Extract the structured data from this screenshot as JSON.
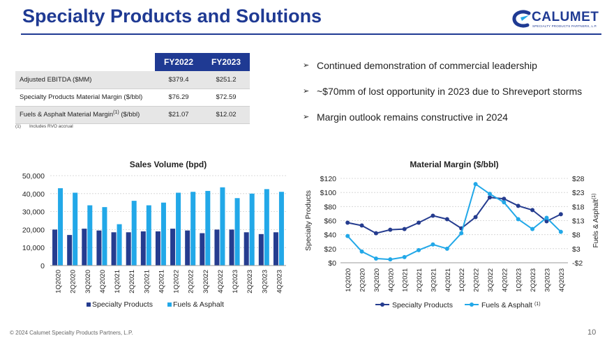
{
  "slide": {
    "title": "Specialty Products and Solutions",
    "footer": "© 2024 Calumet Specialty Products Partners, L.P.",
    "page_number": "10"
  },
  "logo": {
    "name": "CALUMET",
    "tagline": "SPECIALTY PRODUCTS PARTNERS, L.P."
  },
  "colors": {
    "brand_navy": "#1f3a93",
    "series_dark": "#253c8f",
    "series_light": "#22a8e8"
  },
  "kpi_table": {
    "headers": [
      "FY2022",
      "FY2023"
    ],
    "rows": [
      {
        "label": "Adjusted EBITDA ($MM)",
        "sup": "",
        "suffix": "",
        "fy2022": "$379.4",
        "fy2023": "$251.2"
      },
      {
        "label": "Specialty Products Material Margin ($/bbl)",
        "sup": "",
        "suffix": "",
        "fy2022": "$76.29",
        "fy2023": "$72.59"
      },
      {
        "label": "Fuels & Asphalt Material Margin",
        "sup": "(1)",
        "suffix": " ($/bbl)",
        "fy2022": "$21.07",
        "fy2023": "$12.02"
      }
    ],
    "footnote_ref": "(1)",
    "footnote_text": "Includes RVO accrual"
  },
  "bullets": [
    "Continued demonstration of commercial leadership",
    "~$70mm of lost opportunity in 2023 due to Shreveport storms",
    "Margin outlook remains constructive in 2024"
  ],
  "chart_data": [
    {
      "type": "bar",
      "title": "Sales Volume (bpd)",
      "categories": [
        "1Q2020",
        "2Q2020",
        "3Q2020",
        "4Q2020",
        "1Q2021",
        "2Q2021",
        "3Q2021",
        "4Q2021",
        "1Q2022",
        "2Q2022",
        "3Q2022",
        "4Q2022",
        "1Q2023",
        "2Q2023",
        "3Q2023",
        "4Q2023"
      ],
      "series": [
        {
          "name": "Specialty Products",
          "values": [
            20000,
            17000,
            20500,
            19500,
            18500,
            18500,
            19000,
            19000,
            20500,
            19500,
            18000,
            20000,
            20000,
            18500,
            17500,
            18500
          ]
        },
        {
          "name": "Fuels & Asphalt",
          "values": [
            43000,
            40500,
            33500,
            32500,
            23000,
            36000,
            33500,
            35000,
            40500,
            41000,
            41500,
            43500,
            37500,
            40000,
            42500,
            41000
          ]
        }
      ],
      "ylim": [
        0,
        50000
      ],
      "yticks": [
        "0",
        "10,000",
        "20,000",
        "30,000",
        "40,000",
        "50,000"
      ],
      "grid": true,
      "legend": "bottom"
    },
    {
      "type": "line",
      "title": "Material Margin ($/bbl)",
      "categories": [
        "1Q2020",
        "2Q2020",
        "3Q2020",
        "4Q2020",
        "1Q2021",
        "2Q2021",
        "3Q2021",
        "4Q2021",
        "1Q2022",
        "2Q2022",
        "3Q2022",
        "4Q2022",
        "1Q2023",
        "2Q2023",
        "3Q2023",
        "4Q2023"
      ],
      "ylabel_left": "Specialty Products",
      "ylabel_right": "Fuels & Asphalt",
      "ylabel_right_sup": "(1)",
      "ylim_left": [
        0,
        120
      ],
      "yticks_left": [
        "$0",
        "$20",
        "$40",
        "$60",
        "$80",
        "$100",
        "$120"
      ],
      "ylim_right": [
        -2,
        28
      ],
      "yticks_right": [
        "-$2",
        "$3",
        "$8",
        "$13",
        "$18",
        "$23",
        "$28"
      ],
      "series": [
        {
          "name": "Specialty Products",
          "axis": "left",
          "sup": "",
          "values": [
            57,
            53,
            42,
            47,
            48,
            57,
            67,
            62,
            49,
            65,
            93,
            91,
            81,
            75,
            59,
            69
          ]
        },
        {
          "name": "Fuels & Asphalt",
          "axis": "right",
          "sup": "(1)",
          "values": [
            7.5,
            2,
            -0.5,
            -0.8,
            0,
            2.5,
            4.5,
            3,
            8.5,
            26,
            22.5,
            19.5,
            13.5,
            10,
            14,
            9
          ]
        }
      ],
      "grid": true,
      "legend": "bottom"
    }
  ]
}
